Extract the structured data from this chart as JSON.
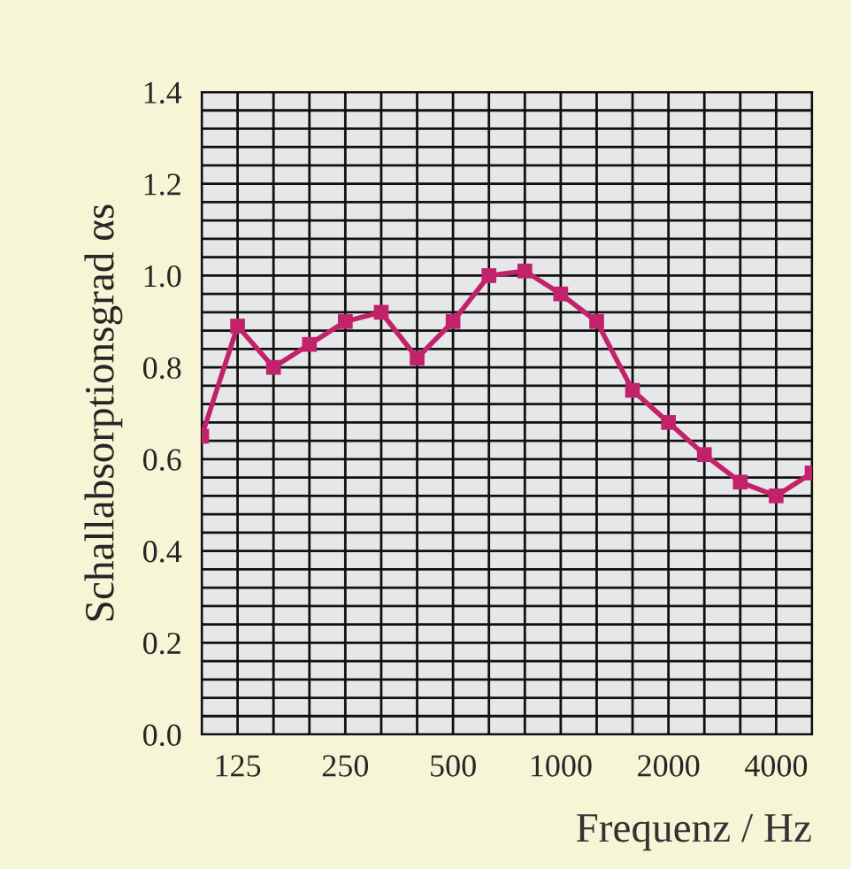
{
  "chart_data": {
    "type": "line",
    "xlabel": "Frequenz / Hz",
    "ylabel": "Schallabsorptionsgrad αs",
    "categories": [
      null,
      "125",
      null,
      null,
      "250",
      null,
      null,
      "500",
      null,
      null,
      "1000",
      null,
      null,
      "2000",
      null,
      null,
      "4000",
      null
    ],
    "series": [
      {
        "color": "#c2226a",
        "values": [
          0.65,
          0.89,
          0.8,
          0.85,
          0.9,
          0.92,
          0.82,
          0.9,
          1.0,
          1.01,
          0.96,
          0.9,
          0.75,
          0.68,
          0.61,
          0.55,
          0.52,
          0.57
        ]
      }
    ],
    "ylim": [
      0,
      1.4
    ],
    "yticks": [
      {
        "value": 0,
        "label": "0.0"
      },
      {
        "value": 0.2,
        "label": "0.2"
      },
      {
        "value": 0.4,
        "label": "0.4"
      },
      {
        "value": 0.6,
        "label": "0.6"
      },
      {
        "value": 0.8,
        "label": "0.8"
      },
      {
        "value": 1.0,
        "label": "1.0"
      },
      {
        "value": 1.2,
        "label": "1.2"
      },
      {
        "value": 1.4,
        "label": "1.4"
      }
    ],
    "grid": true,
    "marker": "square",
    "line_style": "solid",
    "legend": false
  }
}
